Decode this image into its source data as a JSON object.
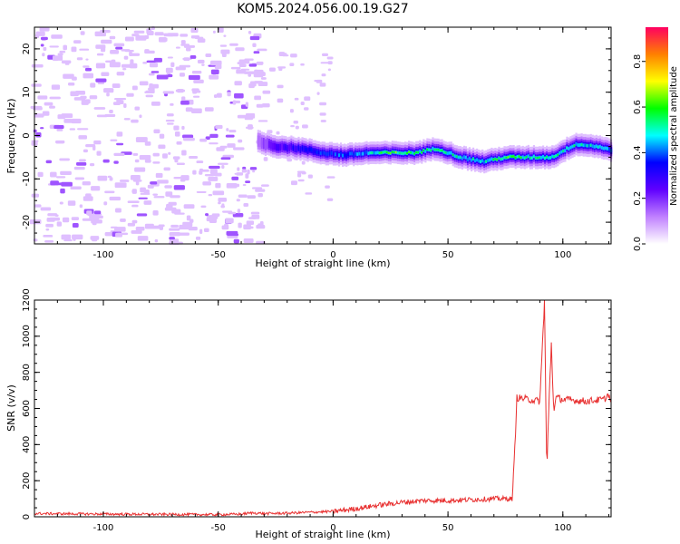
{
  "figure_title": "KOM5.2024.056.00.19.G27",
  "chart_data": [
    {
      "type": "heatmap",
      "xlabel": "Height of straight line (km)",
      "ylabel": "Frequency (Hz)",
      "xlim": [
        -130,
        121
      ],
      "ylim": [
        -25,
        25
      ],
      "xticks": [
        -100,
        -50,
        0,
        50,
        100
      ],
      "yticks": [
        -20,
        -10,
        0,
        10,
        20
      ],
      "colorbar": {
        "label": "Normalized spectral amplitude",
        "range": [
          0,
          0.95
        ],
        "ticks": [
          0.0,
          0.2,
          0.4,
          0.6,
          0.8
        ],
        "colormap": [
          "#ffffff",
          "#c080ff",
          "#6000ff",
          "#0000ff",
          "#00ffff",
          "#00ff00",
          "#ffff00",
          "#ff8000",
          "#ff0060"
        ]
      },
      "ridge": {
        "description_x": [
          -33,
          -25,
          -15,
          -5,
          5,
          15,
          25,
          35,
          45,
          55,
          65,
          75,
          85,
          95,
          105,
          115,
          121
        ],
        "frequency": [
          -1.5,
          -2.5,
          -3,
          -4,
          -4.5,
          -4,
          -4,
          -4,
          -3,
          -5,
          -6,
          -5,
          -5,
          -5,
          -2,
          -2.5,
          -3.5
        ],
        "amplitude": [
          0.15,
          0.25,
          0.3,
          0.35,
          0.4,
          0.45,
          0.6,
          0.55,
          0.5,
          0.5,
          0.45,
          0.6,
          0.5,
          0.5,
          0.5,
          0.45,
          0.4
        ]
      },
      "noise_region": [
        -130,
        -30
      ]
    },
    {
      "type": "line",
      "xlabel": "Height of straight line (km)",
      "ylabel": "SNR (v/v)",
      "xlim": [
        -130,
        121
      ],
      "ylim": [
        0,
        1200
      ],
      "xticks": [
        -100,
        -50,
        0,
        50,
        100
      ],
      "yticks": [
        0,
        200,
        400,
        600,
        800,
        1000,
        1200
      ],
      "color": "#e83030",
      "series": [
        {
          "x": [
            -130,
            -100,
            -50,
            -40,
            -35,
            -30,
            -20,
            -10,
            0,
            10,
            20,
            30,
            40,
            50,
            60,
            70,
            78,
            79,
            80,
            85,
            90,
            92,
            93,
            94,
            95,
            96,
            97,
            100,
            110,
            118,
            120,
            121
          ],
          "y": [
            18,
            15,
            12,
            15,
            22,
            18,
            20,
            25,
            30,
            45,
            65,
            80,
            90,
            90,
            95,
            100,
            100,
            350,
            660,
            650,
            640,
            1200,
            250,
            640,
            960,
            590,
            660,
            650,
            640,
            650,
            680,
            620
          ]
        }
      ]
    }
  ]
}
